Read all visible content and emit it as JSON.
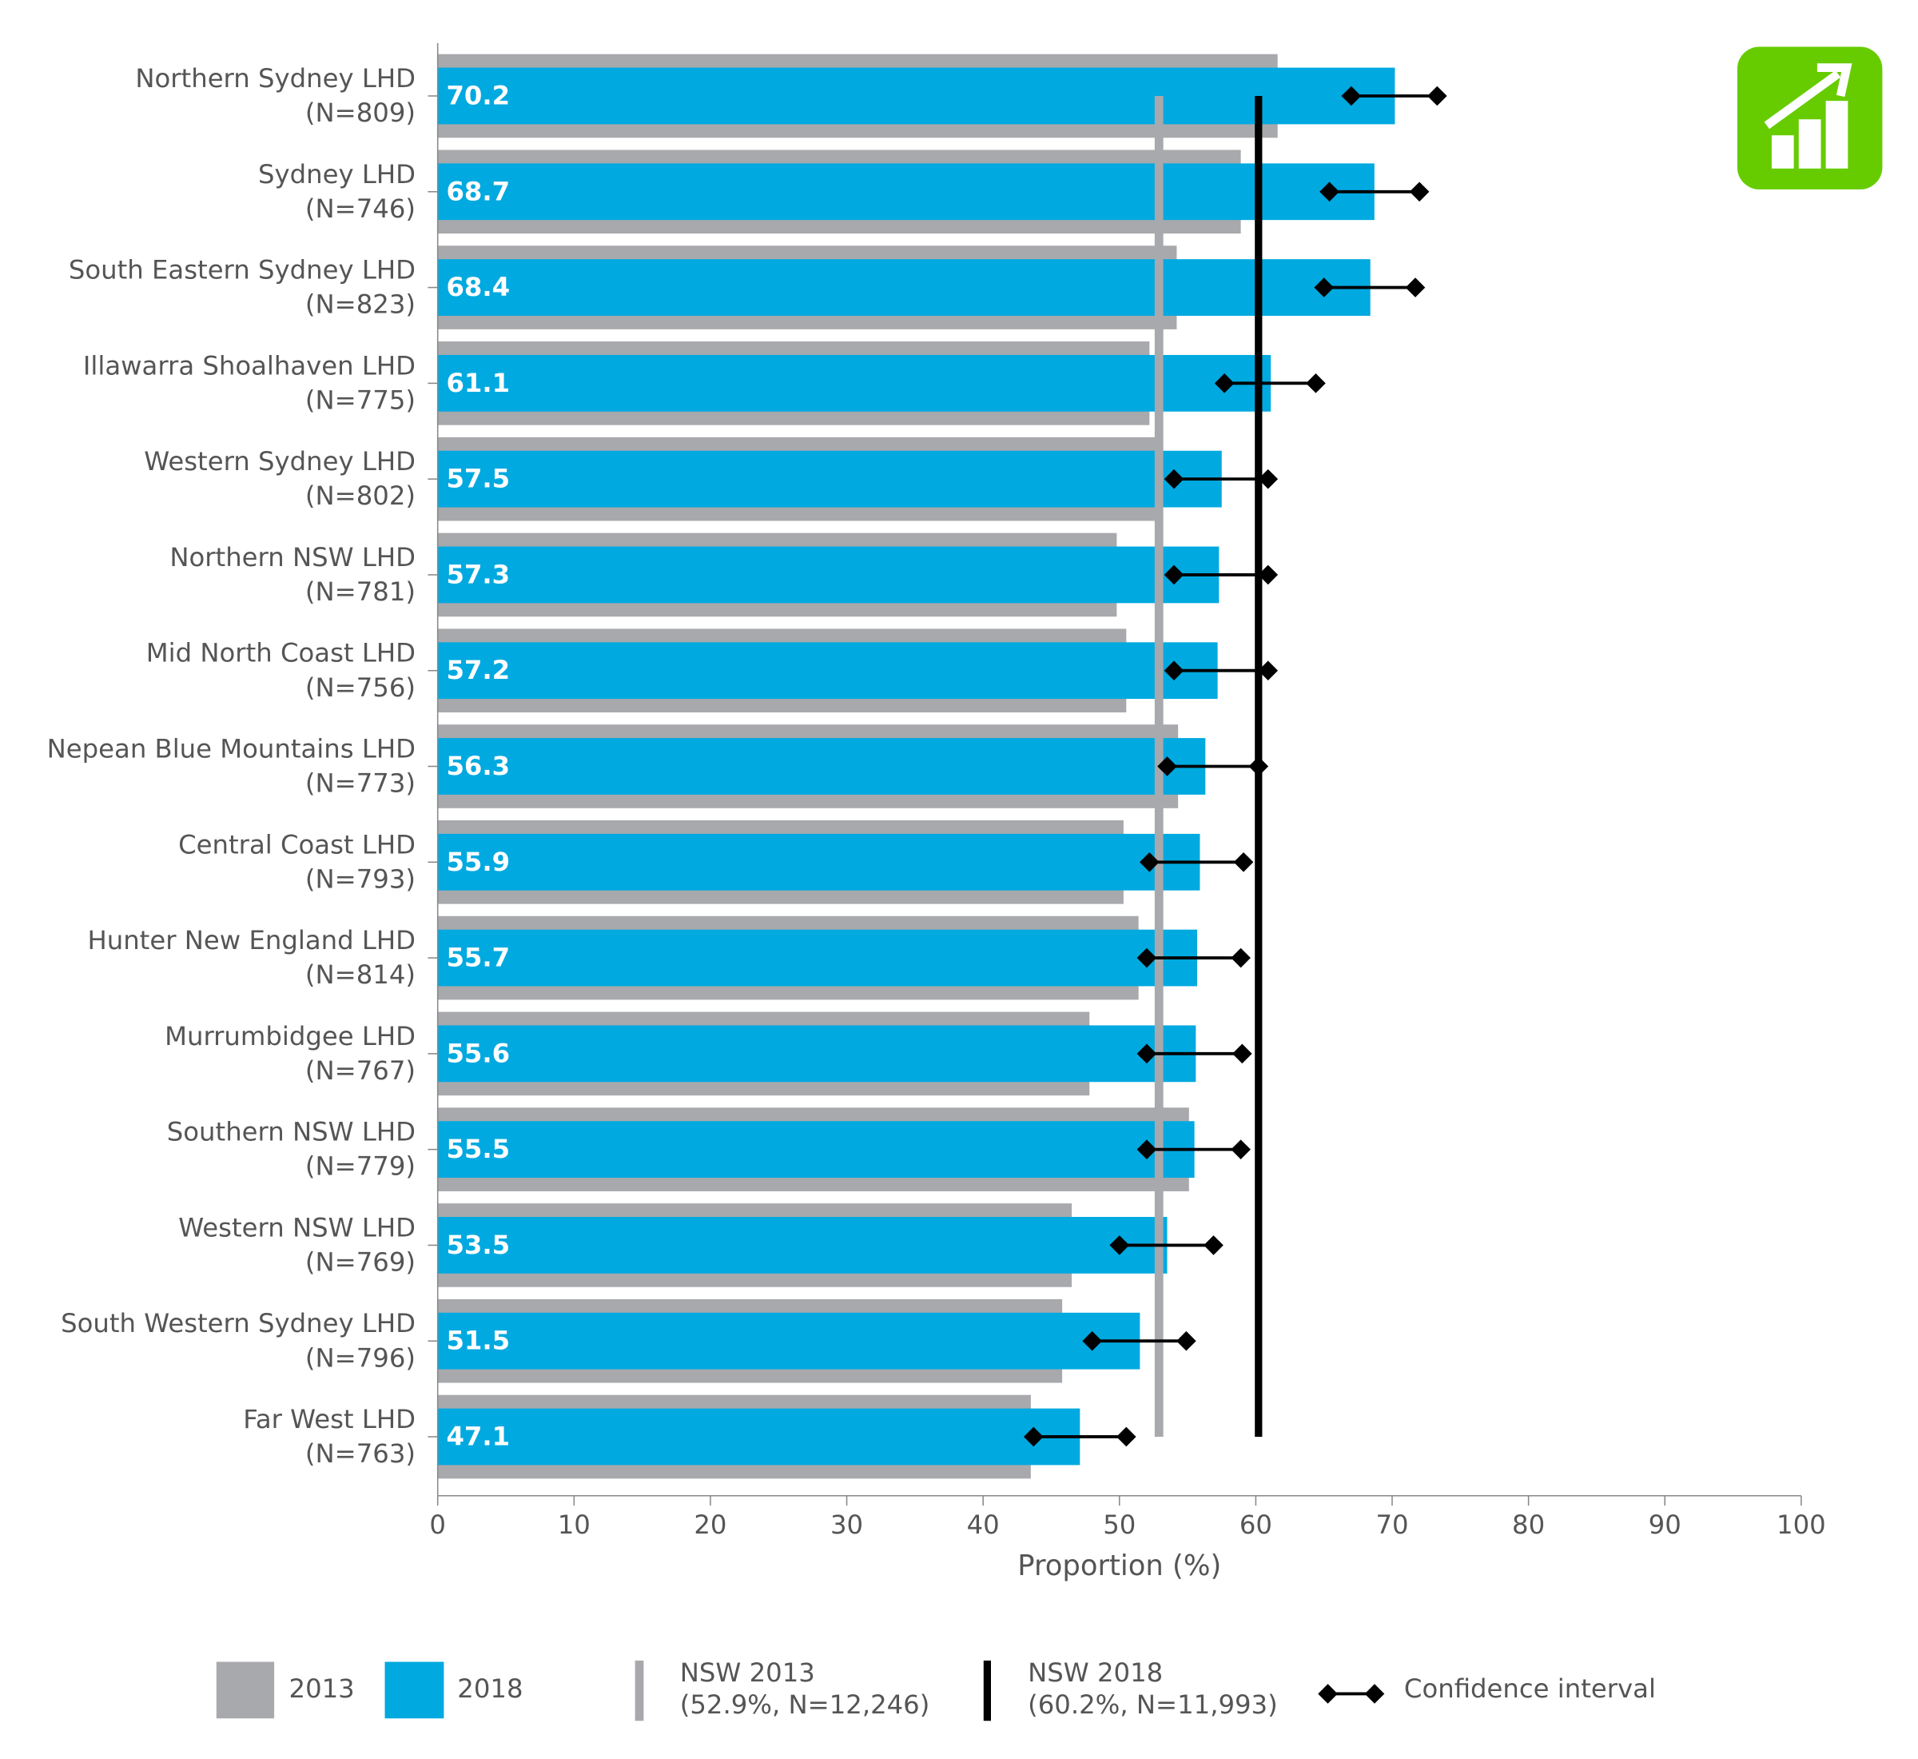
{
  "chart_data": {
    "type": "bar",
    "orientation": "horizontal",
    "xlabel": "Proportion (%)",
    "categories": [
      "Northern Sydney LHD",
      "Sydney LHD",
      "South Eastern Sydney LHD",
      "Illawarra Shoalhaven LHD",
      "Western Sydney LHD",
      "Northern NSW LHD",
      "Mid North Coast LHD",
      "Nepean Blue Mountains LHD",
      "Central Coast LHD",
      "Hunter New England LHD",
      "Murrumbidgee LHD",
      "Southern NSW LHD",
      "Western NSW LHD",
      "South Western Sydney LHD",
      "Far West LHD"
    ],
    "category_notes": [
      "(N=809)",
      "(N=746)",
      "(N=823)",
      "(N=775)",
      "(N=802)",
      "(N=781)",
      "(N=756)",
      "(N=773)",
      "(N=793)",
      "(N=814)",
      "(N=767)",
      "(N=779)",
      "(N=769)",
      "(N=796)",
      "(N=763)"
    ],
    "series": [
      {
        "name": "2013",
        "color": "#a7a9ac",
        "values": [
          61.6,
          58.9,
          54.2,
          52.2,
          53.0,
          49.8,
          50.5,
          54.3,
          50.3,
          51.4,
          47.8,
          55.1,
          46.5,
          45.8,
          43.5
        ]
      },
      {
        "name": "2018",
        "color": "#00a9e0",
        "show_value_labels": true,
        "values": [
          70.2,
          68.7,
          68.4,
          61.1,
          57.5,
          57.3,
          57.2,
          56.3,
          55.9,
          55.7,
          55.6,
          55.5,
          53.5,
          51.5,
          47.1
        ]
      }
    ],
    "confidence_interval": {
      "name": "Confidence interval",
      "color": "#000000",
      "low": [
        67.0,
        65.4,
        65.0,
        57.7,
        54.0,
        54.0,
        54.0,
        53.5,
        52.2,
        52.0,
        52.0,
        52.0,
        50.0,
        48.0,
        43.7
      ],
      "high": [
        73.3,
        72.0,
        71.7,
        64.4,
        60.9,
        60.9,
        60.9,
        60.2,
        59.1,
        58.9,
        59.0,
        58.9,
        56.9,
        54.9,
        50.5
      ]
    },
    "reference_lines": [
      {
        "name": "NSW 2013",
        "label": "(52.9%, N=12,246)",
        "value": 52.9,
        "color": "#a7a9ac"
      },
      {
        "name": "NSW 2018",
        "label": "(60.2%, N=11,993)",
        "value": 60.2,
        "color": "#000000"
      }
    ],
    "xlim": [
      0,
      100
    ],
    "xticks": [
      0,
      10,
      20,
      30,
      40,
      50,
      60,
      70,
      80,
      90,
      100
    ]
  }
}
